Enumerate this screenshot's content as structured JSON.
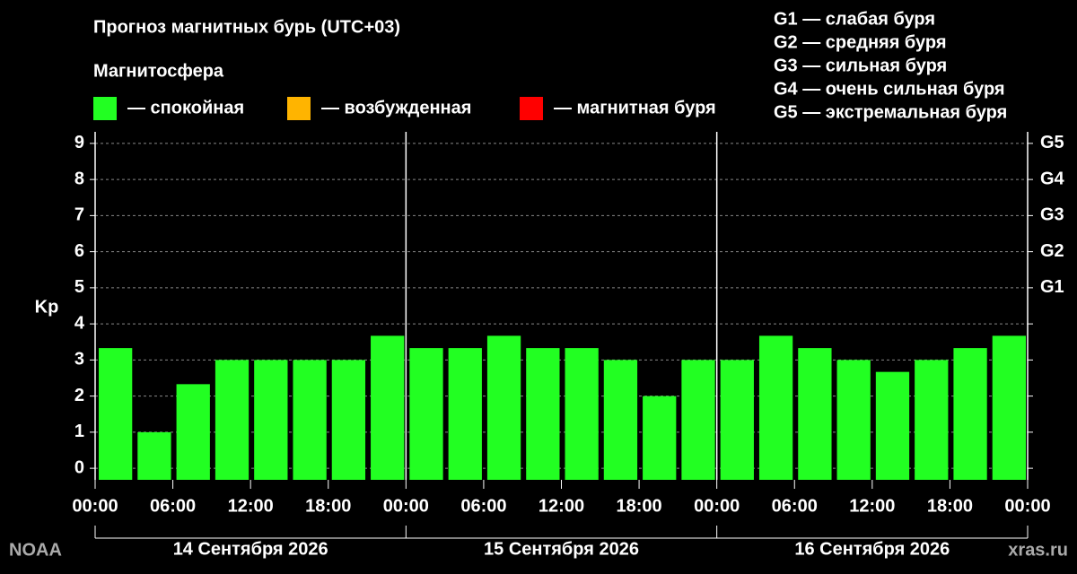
{
  "chart_data": {
    "type": "bar",
    "title": "Прогноз магнитных бурь (UTC+03)",
    "subtitle": "Магнитосфера",
    "legend": [
      {
        "name": "— спокойная",
        "color": "#22ff22"
      },
      {
        "name": "— возбужденная",
        "color": "#ffb400"
      },
      {
        "name": "— магнитная буря",
        "color": "#ff0000"
      }
    ],
    "g_scale": [
      "G1 — слабая буря",
      "G2 — средняя буря",
      "G3 — сильная буря",
      "G4 — очень сильная буря",
      "G5 — экстремальная буря"
    ],
    "y_label": "Kp",
    "x": [
      0,
      3,
      6,
      9,
      12,
      15,
      18,
      21,
      24,
      27,
      30,
      33,
      36,
      39,
      42,
      45,
      48,
      51,
      54,
      57,
      60,
      63,
      66,
      69
    ],
    "series": [
      {
        "name": "Kp",
        "color": "#22ff22",
        "values": [
          3.33,
          1,
          2.33,
          3,
          3,
          3,
          3,
          3.67,
          3.33,
          3.33,
          3.67,
          3.33,
          3.33,
          3,
          2,
          3,
          3,
          3.67,
          3.33,
          3,
          2.67,
          3,
          3.33,
          3.67
        ]
      }
    ],
    "xlim": [
      0,
      72
    ],
    "xticks": [
      {
        "value": 0,
        "label": "00:00"
      },
      {
        "value": 6,
        "label": "06:00"
      },
      {
        "value": 12,
        "label": "12:00"
      },
      {
        "value": 18,
        "label": "18:00"
      },
      {
        "value": 24,
        "label": "00:00"
      },
      {
        "value": 30,
        "label": "06:00"
      },
      {
        "value": 36,
        "label": "12:00"
      },
      {
        "value": 42,
        "label": "18:00"
      },
      {
        "value": 48,
        "label": "00:00"
      },
      {
        "value": 54,
        "label": "06:00"
      },
      {
        "value": 60,
        "label": "12:00"
      },
      {
        "value": 66,
        "label": "18:00"
      },
      {
        "value": 72,
        "label": "00:00"
      }
    ],
    "day_labels": [
      "14 Сентября 2026",
      "15 Сентября 2026",
      "16 Сентября 2026"
    ],
    "ylim": [
      -0.32,
      9.32
    ],
    "yticks": [
      0,
      1,
      2,
      3,
      4,
      5,
      6,
      7,
      8,
      9
    ],
    "y2ticks": [
      {
        "value": 5,
        "label": "G1"
      },
      {
        "value": 6,
        "label": "G2"
      },
      {
        "value": 7,
        "label": "G3"
      },
      {
        "value": 8,
        "label": "G4"
      },
      {
        "value": 9,
        "label": "G5"
      }
    ],
    "grid": true,
    "source": "NOAA",
    "credit": "xras.ru"
  }
}
